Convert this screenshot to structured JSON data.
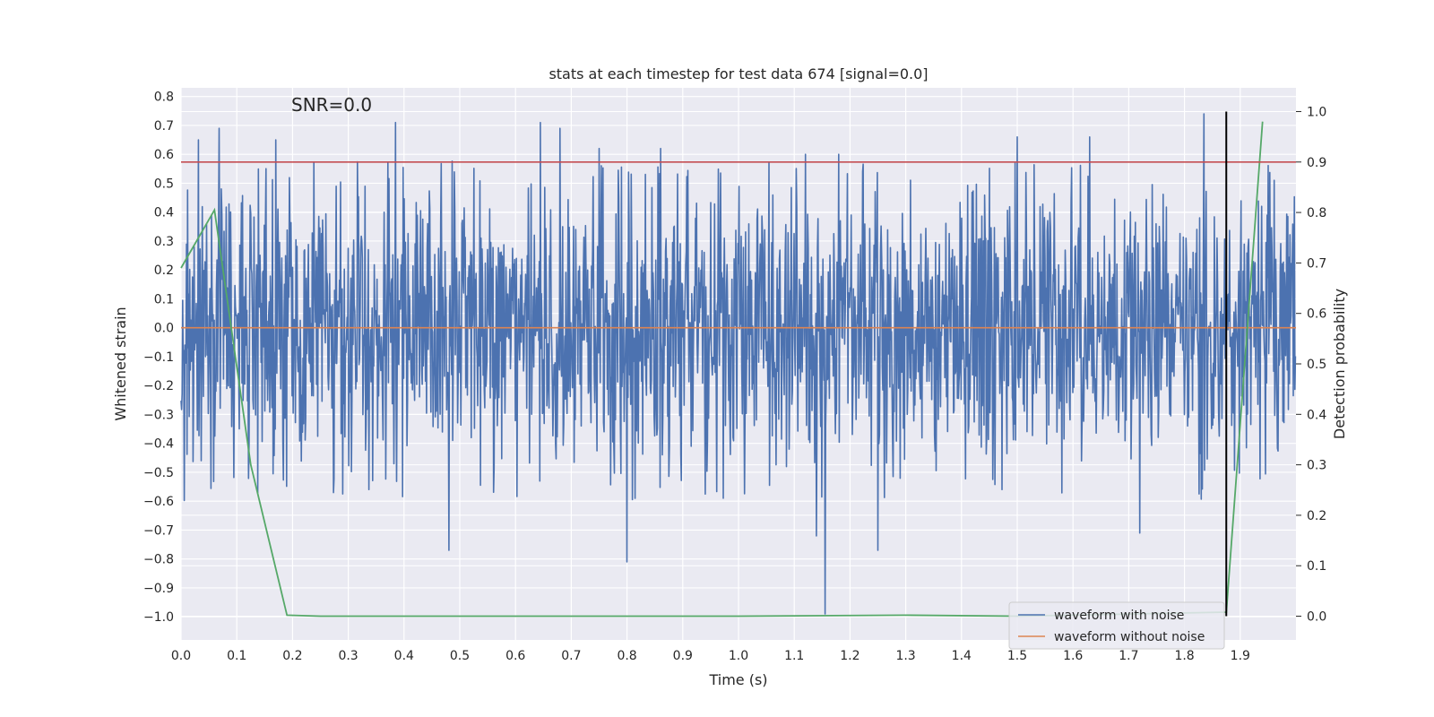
{
  "chart_data": {
    "type": "line",
    "title": "stats at each timestep for test data 674 [signal=0.0]",
    "annotation": "SNR=0.0",
    "xlabel": "Time (s)",
    "ylabel": "Whitened strain",
    "y2label": "Detection probability",
    "xlim": [
      0.0,
      2.0
    ],
    "ylim": [
      -1.08,
      0.83
    ],
    "y2lim": [
      -0.047,
      1.047
    ],
    "xticks": [
      0.0,
      0.1,
      0.2,
      0.3,
      0.4,
      0.5,
      0.6,
      0.7,
      0.8,
      0.9,
      1.0,
      1.1,
      1.2,
      1.3,
      1.4,
      1.5,
      1.6,
      1.7,
      1.8,
      1.9
    ],
    "yticks": [
      0.8,
      0.7,
      0.6,
      0.5,
      0.4,
      0.3,
      0.2,
      0.1,
      0.0,
      -0.1,
      -0.2,
      -0.3,
      -0.4,
      -0.5,
      -0.6,
      -0.7,
      -0.8,
      -0.9,
      -1.0
    ],
    "y2ticks": [
      1.0,
      0.9,
      0.8,
      0.7,
      0.6,
      0.5,
      0.4,
      0.3,
      0.2,
      0.1,
      0.0
    ],
    "grid": true,
    "legend_position": "bottom-right",
    "colors": {
      "noise": "#4c72b0",
      "clean": "#dd8452",
      "probability": "#55a868",
      "threshold": "#c44e52",
      "marker": "#000000",
      "background": "#eaeaf2",
      "grid": "#ffffff"
    },
    "series": [
      {
        "name": "waveform with noise",
        "sampling": {
          "x_start": 0.0,
          "x_end": 2.0,
          "n": 2048
        },
        "envelope_std": 0.25,
        "peaks": [
          [
            0.031,
            0.65
          ],
          [
            0.068,
            0.69
          ],
          [
            0.17,
            0.65
          ],
          [
            0.385,
            0.71
          ],
          [
            0.645,
            0.71
          ],
          [
            0.68,
            0.69
          ],
          [
            0.75,
            0.62
          ],
          [
            0.86,
            0.62
          ],
          [
            1.12,
            0.6
          ],
          [
            1.18,
            0.6
          ],
          [
            1.5,
            0.66
          ],
          [
            1.63,
            0.66
          ],
          [
            1.835,
            0.74
          ],
          [
            0.48,
            -0.77
          ],
          [
            0.8,
            -0.81
          ],
          [
            1.155,
            -0.99
          ],
          [
            1.25,
            -0.77
          ],
          [
            1.14,
            -0.72
          ],
          [
            1.72,
            -0.71
          ]
        ]
      },
      {
        "name": "waveform without noise",
        "x": [
          0.0,
          2.0
        ],
        "y": [
          0.0,
          0.0
        ]
      },
      {
        "name": "",
        "axis": "y2",
        "x": [
          0.0,
          0.06,
          0.125,
          0.19,
          0.25,
          0.5,
          1.0,
          1.3,
          1.5,
          1.875,
          1.94
        ],
        "y": [
          0.69,
          0.805,
          0.3,
          0.002,
          0.0,
          0.0,
          0.0,
          0.002,
          0.0,
          0.008,
          0.98
        ]
      }
    ],
    "threshold_y2": 0.9,
    "marker_x": 1.875,
    "marker_y2_range": [
      0.0,
      1.0
    ]
  }
}
